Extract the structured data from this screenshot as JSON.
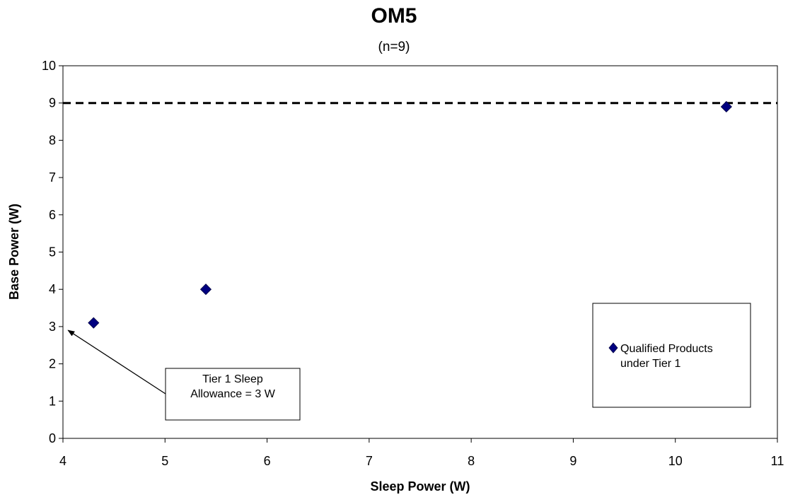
{
  "chart_data": {
    "type": "scatter",
    "title": "OM5",
    "subtitle": "(n=9)",
    "xlabel": "Sleep Power (W)",
    "ylabel": "Base Power (W)",
    "xlim": [
      4,
      11
    ],
    "ylim": [
      0,
      10
    ],
    "x_ticks": [
      "4",
      "5",
      "6",
      "7",
      "8",
      "9",
      "10",
      "11"
    ],
    "y_ticks": [
      "0",
      "1",
      "2",
      "3",
      "4",
      "5",
      "6",
      "7",
      "8",
      "9",
      "10"
    ],
    "grid": false,
    "series": [
      {
        "name": "Qualified Products under Tier 1",
        "marker": "diamond",
        "color": "#000080",
        "points": [
          {
            "x": 4.3,
            "y": 3.1
          },
          {
            "x": 5.4,
            "y": 4.0
          },
          {
            "x": 10.5,
            "y": 8.9
          }
        ]
      }
    ],
    "reference_line": {
      "y": 9,
      "style": "dashed",
      "color": "#000000"
    },
    "legend": {
      "placement": "right",
      "label_lines": [
        "Qualified Products",
        "under Tier 1"
      ]
    },
    "annotation": {
      "lines": [
        "Tier 1 Sleep",
        "Allowance = 3 W"
      ],
      "arrow_target": {
        "x": 4.05,
        "y": 2.9
      }
    }
  }
}
